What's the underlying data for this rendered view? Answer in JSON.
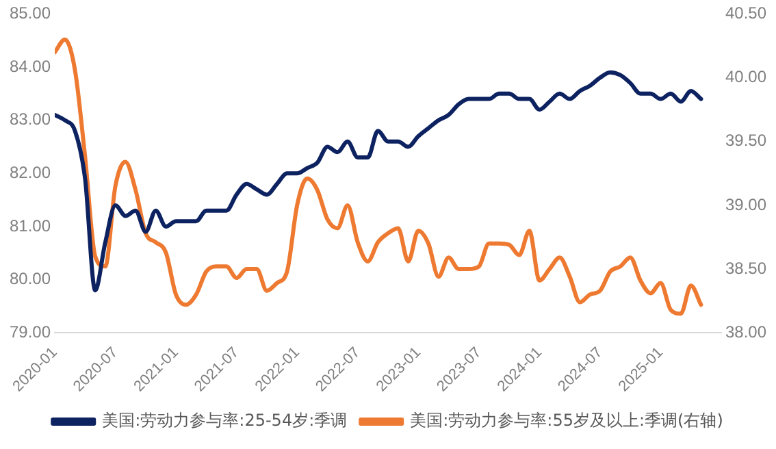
{
  "chart_data": {
    "type": "line",
    "x": [
      "2020-01",
      "2020-02",
      "2020-03",
      "2020-04",
      "2020-05",
      "2020-06",
      "2020-07",
      "2020-08",
      "2020-09",
      "2020-10",
      "2020-11",
      "2020-12",
      "2021-01",
      "2021-02",
      "2021-03",
      "2021-04",
      "2021-05",
      "2021-06",
      "2021-07",
      "2021-08",
      "2021-09",
      "2021-10",
      "2021-11",
      "2021-12",
      "2022-01",
      "2022-02",
      "2022-03",
      "2022-04",
      "2022-05",
      "2022-06",
      "2022-07",
      "2022-08",
      "2022-09",
      "2022-10",
      "2022-11",
      "2022-12",
      "2023-01",
      "2023-02",
      "2023-03",
      "2023-04",
      "2023-05",
      "2023-06",
      "2023-07",
      "2023-08",
      "2023-09",
      "2023-10",
      "2023-11",
      "2023-12",
      "2024-01",
      "2024-02",
      "2024-03",
      "2024-04",
      "2024-05",
      "2024-06",
      "2024-07",
      "2024-08",
      "2024-09",
      "2024-10",
      "2024-11",
      "2024-12",
      "2025-01",
      "2025-02",
      "2025-03",
      "2025-04",
      "2025-05"
    ],
    "series": [
      {
        "name": "美国:劳动力参与率:25-54岁:季调",
        "color": "#0d2260",
        "values": [
          83.1,
          83.0,
          82.8,
          81.9,
          79.8,
          80.7,
          81.4,
          81.2,
          81.3,
          80.9,
          81.3,
          81.0,
          81.1,
          81.1,
          81.1,
          81.3,
          81.3,
          81.3,
          81.6,
          81.8,
          81.7,
          81.6,
          81.8,
          82.0,
          82.0,
          82.1,
          82.2,
          82.5,
          82.4,
          82.6,
          82.3,
          82.3,
          82.8,
          82.6,
          82.6,
          82.5,
          82.7,
          82.85,
          83.0,
          83.1,
          83.3,
          83.4,
          83.4,
          83.4,
          83.5,
          83.5,
          83.4,
          83.4,
          83.2,
          83.35,
          83.5,
          83.4,
          83.55,
          83.65,
          83.8,
          83.9,
          83.85,
          83.7,
          83.5,
          83.5,
          83.4,
          83.5,
          83.35,
          83.55,
          83.4
        ]
      },
      {
        "name": "美国:劳动力参与率:55岁及以上:季调(右轴)",
        "color": "#ee7a32",
        "axis": "y2",
        "values": [
          40.2,
          40.3,
          40.06,
          39.38,
          38.6,
          38.52,
          39.15,
          39.34,
          39.12,
          38.78,
          38.71,
          38.63,
          38.3,
          38.22,
          38.3,
          38.48,
          38.52,
          38.52,
          38.43,
          38.5,
          38.5,
          38.33,
          38.39,
          38.48,
          39.0,
          39.21,
          39.12,
          38.89,
          38.82,
          39.0,
          38.71,
          38.56,
          38.71,
          38.78,
          38.82,
          38.56,
          38.8,
          38.7,
          38.44,
          38.59,
          38.5,
          38.5,
          38.52,
          38.7,
          38.7,
          38.69,
          38.61,
          38.8,
          38.41,
          38.5,
          38.59,
          38.44,
          38.24,
          38.3,
          38.33,
          38.48,
          38.52,
          38.59,
          38.41,
          38.31,
          38.39,
          38.18,
          38.15,
          38.37,
          38.22
        ]
      }
    ],
    "xlim": [
      "2020-01",
      "2025-07"
    ],
    "xticks": [
      "2020-01",
      "2020-07",
      "2021-01",
      "2021-07",
      "2022-01",
      "2022-07",
      "2023-01",
      "2023-07",
      "2024-01",
      "2024-07",
      "2025-01"
    ],
    "ylim": [
      79,
      85
    ],
    "yticks": [
      {
        "value": 79,
        "label": "79.00"
      },
      {
        "value": 80,
        "label": "80.00"
      },
      {
        "value": 81,
        "label": "81.00"
      },
      {
        "value": 82,
        "label": "82.00"
      },
      {
        "value": 83,
        "label": "83.00"
      },
      {
        "value": 84,
        "label": "84.00"
      },
      {
        "value": 85,
        "label": "85.00"
      }
    ],
    "y2lim": [
      38,
      40.5
    ],
    "y2ticks": [
      {
        "value": 38,
        "label": "38.00"
      },
      {
        "value": 38.5,
        "label": "38.50"
      },
      {
        "value": 39,
        "label": "39.00"
      },
      {
        "value": 39.5,
        "label": "39.50"
      },
      {
        "value": 40,
        "label": "40.00"
      },
      {
        "value": 40.5,
        "label": "40.50"
      }
    ],
    "grid": false,
    "legend": "bottom",
    "marker": "none",
    "line_style": "solid"
  }
}
